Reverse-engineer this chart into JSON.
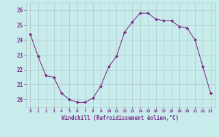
{
  "x": [
    0,
    1,
    2,
    3,
    4,
    5,
    6,
    7,
    8,
    9,
    10,
    11,
    12,
    13,
    14,
    15,
    16,
    17,
    18,
    19,
    20,
    21,
    22,
    23
  ],
  "y": [
    24.4,
    22.9,
    21.6,
    21.5,
    20.4,
    20.0,
    19.8,
    19.8,
    20.1,
    20.9,
    22.2,
    22.9,
    24.5,
    25.2,
    25.8,
    25.8,
    25.4,
    25.3,
    25.3,
    24.9,
    24.8,
    24.0,
    22.2,
    20.4
  ],
  "line_color": "#7b2d8b",
  "marker": "D",
  "marker_size": 2,
  "bg_color": "#c8ecec",
  "grid_color": "#b0c8c8",
  "xlabel": "Windchill (Refroidissement éolien,°C)",
  "xlabel_color": "#7b2d8b",
  "tick_color": "#7b2d8b",
  "ylim": [
    19.5,
    26.5
  ],
  "xlim": [
    -0.5,
    23.5
  ],
  "yticks": [
    20,
    21,
    22,
    23,
    24,
    25,
    26
  ],
  "xticks": [
    0,
    1,
    2,
    3,
    4,
    5,
    6,
    7,
    8,
    9,
    10,
    11,
    12,
    13,
    14,
    15,
    16,
    17,
    18,
    19,
    20,
    21,
    22,
    23
  ]
}
